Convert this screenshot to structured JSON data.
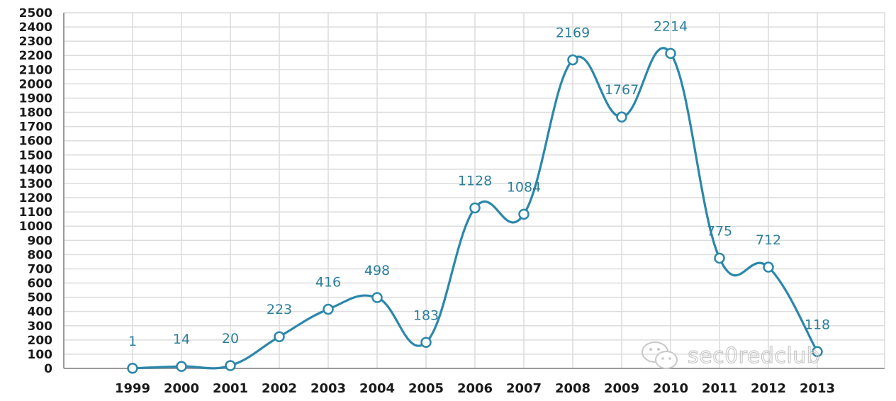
{
  "chart_data": {
    "type": "line",
    "title": "",
    "xlabel": "",
    "ylabel": "",
    "categories": [
      "1999",
      "2000",
      "2001",
      "2002",
      "2003",
      "2004",
      "2005",
      "2006",
      "2007",
      "2008",
      "2009",
      "2010",
      "2011",
      "2012",
      "2013"
    ],
    "series": [
      {
        "values": [
          1,
          14,
          20,
          223,
          416,
          498,
          183,
          1128,
          1084,
          2169,
          1767,
          2214,
          775,
          712,
          118
        ]
      }
    ],
    "data_labels": [
      "1",
      "14",
      "20",
      "223",
      "416",
      "498",
      "183",
      "1128",
      "1084",
      "2169",
      "1767",
      "2214",
      "775",
      "712",
      "118"
    ],
    "ylim": [
      0,
      2500
    ],
    "ytick_step": 100,
    "grid": true,
    "smooth": true,
    "line_color": "#2b87ab",
    "marker": "hollow-circle",
    "grid_color": "#dcdcdc"
  },
  "watermark": {
    "text": "sec0redclub",
    "icon": "wechat-icon"
  }
}
